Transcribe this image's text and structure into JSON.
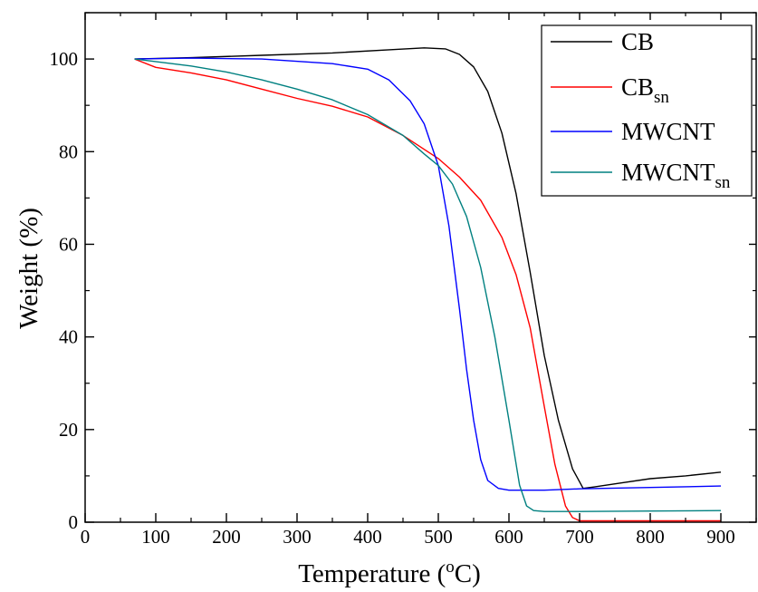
{
  "chart_data": {
    "type": "line",
    "title": "",
    "xlabel": "Temperature (",
    "xlabel_sup": "o",
    "xlabel_tail": "C)",
    "ylabel": "Weight (%)",
    "xlim": [
      0,
      950
    ],
    "ylim": [
      0,
      110
    ],
    "x_ticks": [
      0,
      100,
      200,
      300,
      400,
      500,
      600,
      700,
      800,
      900
    ],
    "x_tick_labels": [
      "0",
      "100",
      "200",
      "300",
      "400",
      "500",
      "600",
      "700",
      "800",
      "900"
    ],
    "y_ticks": [
      0,
      20,
      40,
      60,
      80,
      100
    ],
    "y_tick_labels": [
      "0",
      "20",
      "40",
      "60",
      "80",
      "100"
    ],
    "grid": false,
    "legend_position": "top-right",
    "series": [
      {
        "name": "CB",
        "label_main": "CB",
        "label_sub": "",
        "color": "#000000",
        "x": [
          70,
          150,
          250,
          350,
          430,
          480,
          510,
          530,
          550,
          570,
          590,
          610,
          630,
          650,
          670,
          690,
          705,
          720,
          760,
          800,
          850,
          900
        ],
        "y": [
          100,
          100.3,
          100.8,
          101.3,
          102.0,
          102.4,
          102.2,
          101.0,
          98.3,
          93.0,
          84.0,
          71.0,
          54.0,
          36.0,
          22.0,
          11.5,
          7.3,
          7.6,
          8.5,
          9.4,
          10.0,
          10.8
        ]
      },
      {
        "name": "CBsn",
        "label_main": "CB",
        "label_sub": "sn",
        "color": "#ff0000",
        "x": [
          70,
          100,
          150,
          200,
          250,
          300,
          350,
          400,
          450,
          500,
          530,
          560,
          590,
          610,
          630,
          650,
          665,
          680,
          690,
          700,
          750,
          800,
          900
        ],
        "y": [
          100,
          98.2,
          97.0,
          95.5,
          93.5,
          91.5,
          89.8,
          87.5,
          83.5,
          78.5,
          74.5,
          69.5,
          61.5,
          53.5,
          42.0,
          25.0,
          12.5,
          3.5,
          1.0,
          0.3,
          0.3,
          0.3,
          0.3
        ]
      },
      {
        "name": "MWCNT",
        "label_main": "MWCNT",
        "label_sub": "",
        "color": "#0000ff",
        "x": [
          70,
          150,
          250,
          350,
          400,
          430,
          460,
          480,
          500,
          515,
          530,
          540,
          550,
          560,
          570,
          585,
          600,
          650,
          700,
          800,
          900
        ],
        "y": [
          100,
          100.2,
          100.0,
          99.0,
          97.8,
          95.5,
          91.0,
          86.0,
          77.0,
          64.0,
          46.0,
          33.0,
          22.0,
          13.5,
          9.0,
          7.3,
          6.9,
          6.9,
          7.2,
          7.5,
          7.8
        ]
      },
      {
        "name": "MWCNTsn",
        "label_main": "MWCNT",
        "label_sub": "sn",
        "color": "#008080",
        "x": [
          70,
          150,
          200,
          250,
          300,
          350,
          400,
          450,
          480,
          500,
          520,
          540,
          560,
          580,
          600,
          615,
          625,
          635,
          650,
          700,
          800,
          900
        ],
        "y": [
          100,
          98.5,
          97.2,
          95.5,
          93.5,
          91.2,
          88.0,
          83.5,
          79.5,
          77.0,
          73.0,
          66.0,
          55.0,
          40.0,
          22.0,
          8.0,
          3.5,
          2.5,
          2.3,
          2.3,
          2.4,
          2.5
        ]
      }
    ]
  }
}
